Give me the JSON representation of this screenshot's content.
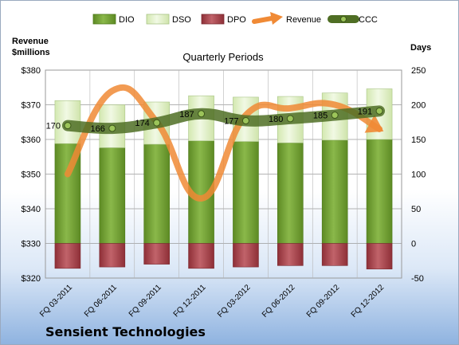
{
  "chart_data": {
    "type": "bar",
    "title": "Quarterly Periods",
    "company": "Sensient Technologies",
    "left_axis": {
      "label_line1": "Revenue",
      "label_line2": "$millions",
      "range": [
        320,
        380
      ],
      "ticks": [
        "$320",
        "$330",
        "$340",
        "$350",
        "$360",
        "$370",
        "$380"
      ]
    },
    "right_axis": {
      "label": "Days",
      "range": [
        -50,
        250
      ],
      "ticks": [
        "-50",
        "0",
        "50",
        "100",
        "150",
        "200",
        "250"
      ]
    },
    "categories": [
      "FQ 03-2011",
      "FQ 06-2011",
      "FQ 09-2011",
      "FQ 12-2011",
      "FQ 03-2012",
      "FQ 06-2012",
      "FQ 09-2012",
      "FQ 12-2012"
    ],
    "legend": [
      "DIO",
      "DSO",
      "DPO",
      "Revenue",
      "CCC"
    ],
    "series": [
      {
        "name": "DIO",
        "axis": "right",
        "type": "stacked-bar",
        "color": "#6e9a2e",
        "values": [
          144,
          138,
          143,
          148,
          147,
          145,
          149,
          150
        ]
      },
      {
        "name": "DSO",
        "axis": "right",
        "type": "stacked-bar",
        "color": "#dff0c4",
        "values": [
          62,
          62,
          61,
          65,
          64,
          67,
          68,
          73
        ]
      },
      {
        "name": "DPO",
        "axis": "right",
        "type": "stacked-bar-negative",
        "color": "#a3444c",
        "values": [
          -36,
          -34,
          -30,
          -36,
          -34,
          -32,
          -32,
          -37
        ]
      },
      {
        "name": "Revenue",
        "axis": "left",
        "type": "smooth-line",
        "color": "#f08a35",
        "values": [
          350,
          374,
          365,
          343,
          367,
          369,
          370,
          363
        ]
      },
      {
        "name": "CCC",
        "axis": "right",
        "type": "smooth-line",
        "color": "#5a7a2a",
        "values": [
          170,
          166,
          174,
          187,
          177,
          180,
          185,
          191
        ]
      }
    ],
    "data_labels": [
      "170",
      "166",
      "174",
      "187",
      "177",
      "180",
      "185",
      "191"
    ],
    "legend_position": "top",
    "grid": true
  }
}
